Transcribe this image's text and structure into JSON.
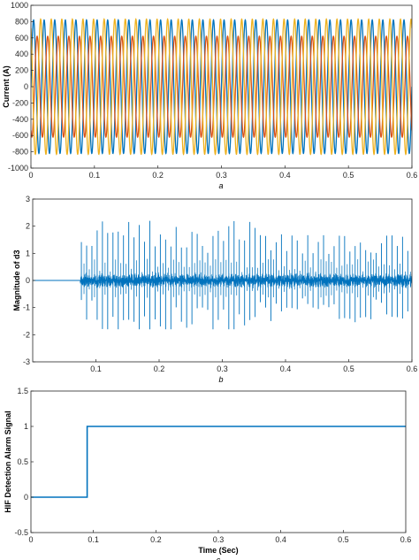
{
  "chart_data": [
    {
      "type": "line",
      "panel": "a",
      "caption": "a",
      "ylabel": "Current (A)",
      "xlabel": "",
      "xlim": [
        0,
        0.6
      ],
      "ylim": [
        -1000,
        1000
      ],
      "xticks": [
        0,
        0.1,
        0.2,
        0.3,
        0.4,
        0.5,
        0.6
      ],
      "yticks": [
        -1000,
        -800,
        -600,
        -400,
        -200,
        0,
        200,
        400,
        600,
        800,
        1000
      ],
      "xtick_labels": [
        "0",
        "0.1",
        "0.2",
        "0.3",
        "0.4",
        "0.5",
        "0.6"
      ],
      "ytick_labels": [
        "-1000",
        "-800",
        "-600",
        "-400",
        "-200",
        "0",
        "200",
        "400",
        "600",
        "800",
        "1000"
      ],
      "frequency_hz": 60,
      "series": [
        {
          "color": "#0072BD",
          "amplitude": 820,
          "phase_deg": 0
        },
        {
          "color": "#D95319",
          "amplitude": 620,
          "phase_deg": -120
        },
        {
          "color": "#EDB120",
          "amplitude": 830,
          "phase_deg": 120
        }
      ]
    },
    {
      "type": "line",
      "panel": "b",
      "caption": "b",
      "ylabel": "Magnitude of d3",
      "xlabel": "",
      "xlim": [
        0,
        0.6
      ],
      "ylim": [
        -3,
        3
      ],
      "xticks": [
        0.1,
        0.2,
        0.3,
        0.4,
        0.5,
        0.6
      ],
      "yticks": [
        -3,
        -2,
        -1,
        0,
        1,
        2,
        3
      ],
      "xtick_labels": [
        "0.1",
        "0.2",
        "0.3",
        "0.4",
        "0.5",
        "0.6"
      ],
      "ytick_labels": [
        "-3",
        "-2",
        "-1",
        "0",
        "1",
        "2",
        "3"
      ],
      "series": [
        {
          "color": "#0072BD",
          "fault_start": 0.075,
          "spike_period": 0.00833
        }
      ]
    },
    {
      "type": "line",
      "panel": "c",
      "caption": "c",
      "ylabel": "HIF Detection Alarm Signal",
      "xlabel": "Time (Sec)",
      "xlim": [
        0,
        0.6
      ],
      "ylim": [
        -0.5,
        1.5
      ],
      "xticks": [
        0,
        0.1,
        0.2,
        0.3,
        0.4,
        0.5,
        0.6
      ],
      "yticks": [
        -0.5,
        0,
        0.5,
        1,
        1.5
      ],
      "xtick_labels": [
        "0",
        "0.1",
        "0.2",
        "0.3",
        "0.4",
        "0.5",
        "0.6"
      ],
      "ytick_labels": [
        "-0.5",
        "0",
        "0.5",
        "1",
        "1.5"
      ],
      "series": [
        {
          "color": "#0072BD",
          "x": [
            0,
            0.09,
            0.09,
            0.6
          ],
          "y": [
            0,
            0,
            1,
            1
          ]
        }
      ]
    }
  ]
}
